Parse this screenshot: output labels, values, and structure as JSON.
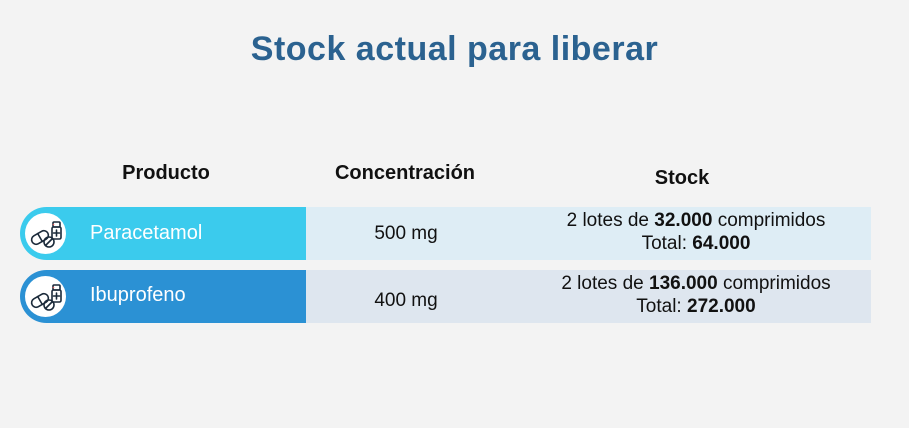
{
  "title": "Stock actual para liberar",
  "headers": {
    "product": "Producto",
    "concentration": "Concentración",
    "stock": "Stock"
  },
  "rows": [
    {
      "product": "Paracetamol",
      "concentration": "500 mg",
      "lots_prefix": "2 lotes de",
      "lot_amount": "32.000",
      "lots_suffix": "comprimidos",
      "total_label": "Total:",
      "total_value": "64.000",
      "icon": "pills-medicine-icon",
      "color": "#3bcbed"
    },
    {
      "product": "Ibuprofeno",
      "concentration": "400 mg",
      "lots_prefix": "2 lotes de",
      "lot_amount": "136.000",
      "lots_suffix": "comprimidos",
      "total_label": "Total:",
      "total_value": "272.000",
      "icon": "pills-medicine-icon",
      "color": "#2b91d4"
    }
  ],
  "colors": {
    "title": "#2b6290",
    "background": "#f3f3f3"
  }
}
